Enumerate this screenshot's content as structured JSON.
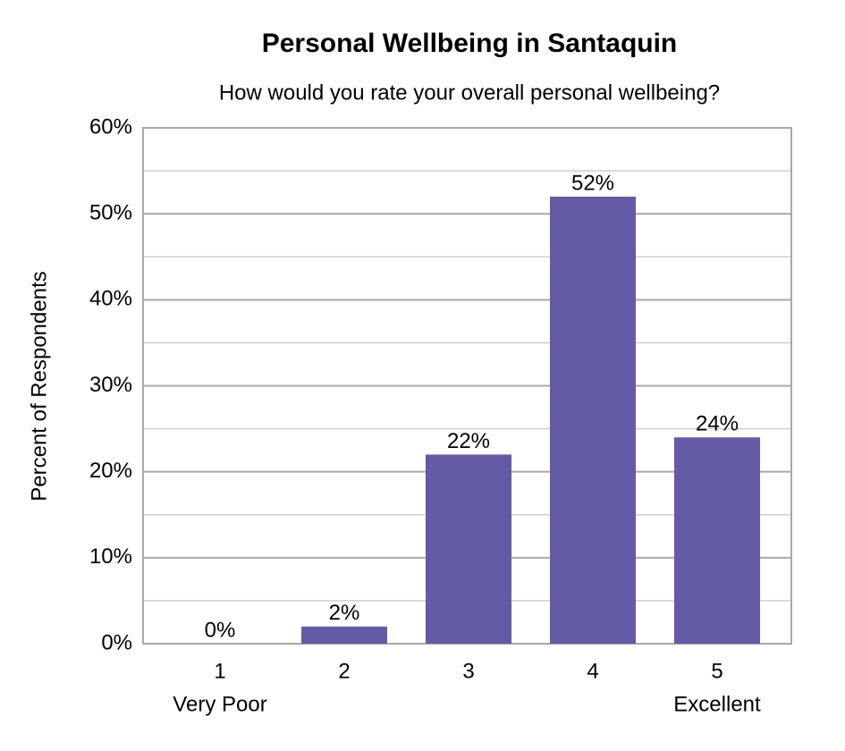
{
  "chart_data": {
    "type": "bar",
    "title": "Personal Wellbeing in Santaquin",
    "subtitle": "How would you rate your overall personal wellbeing?",
    "y_label": "Percent of Respondents",
    "categories": [
      "1",
      "2",
      "3",
      "4",
      "5"
    ],
    "category_sublabels": [
      "Very Poor",
      null,
      null,
      null,
      "Excellent"
    ],
    "values": [
      0,
      2,
      22,
      52,
      24
    ],
    "value_labels": [
      "0%",
      "2%",
      "22%",
      "52%",
      "24%"
    ],
    "color": "#635ba5",
    "ylim": [
      0,
      60
    ],
    "yticks": [
      {
        "value": 0,
        "label": "0%"
      },
      {
        "value": 10,
        "label": "10%"
      },
      {
        "value": 20,
        "label": "20%"
      },
      {
        "value": 30,
        "label": "30%"
      },
      {
        "value": 40,
        "label": "40%"
      },
      {
        "value": 50,
        "label": "50%"
      },
      {
        "value": 60,
        "label": "60%"
      }
    ],
    "minor_yticks": [
      5,
      15,
      25,
      35,
      45,
      55
    ],
    "grid": true
  }
}
